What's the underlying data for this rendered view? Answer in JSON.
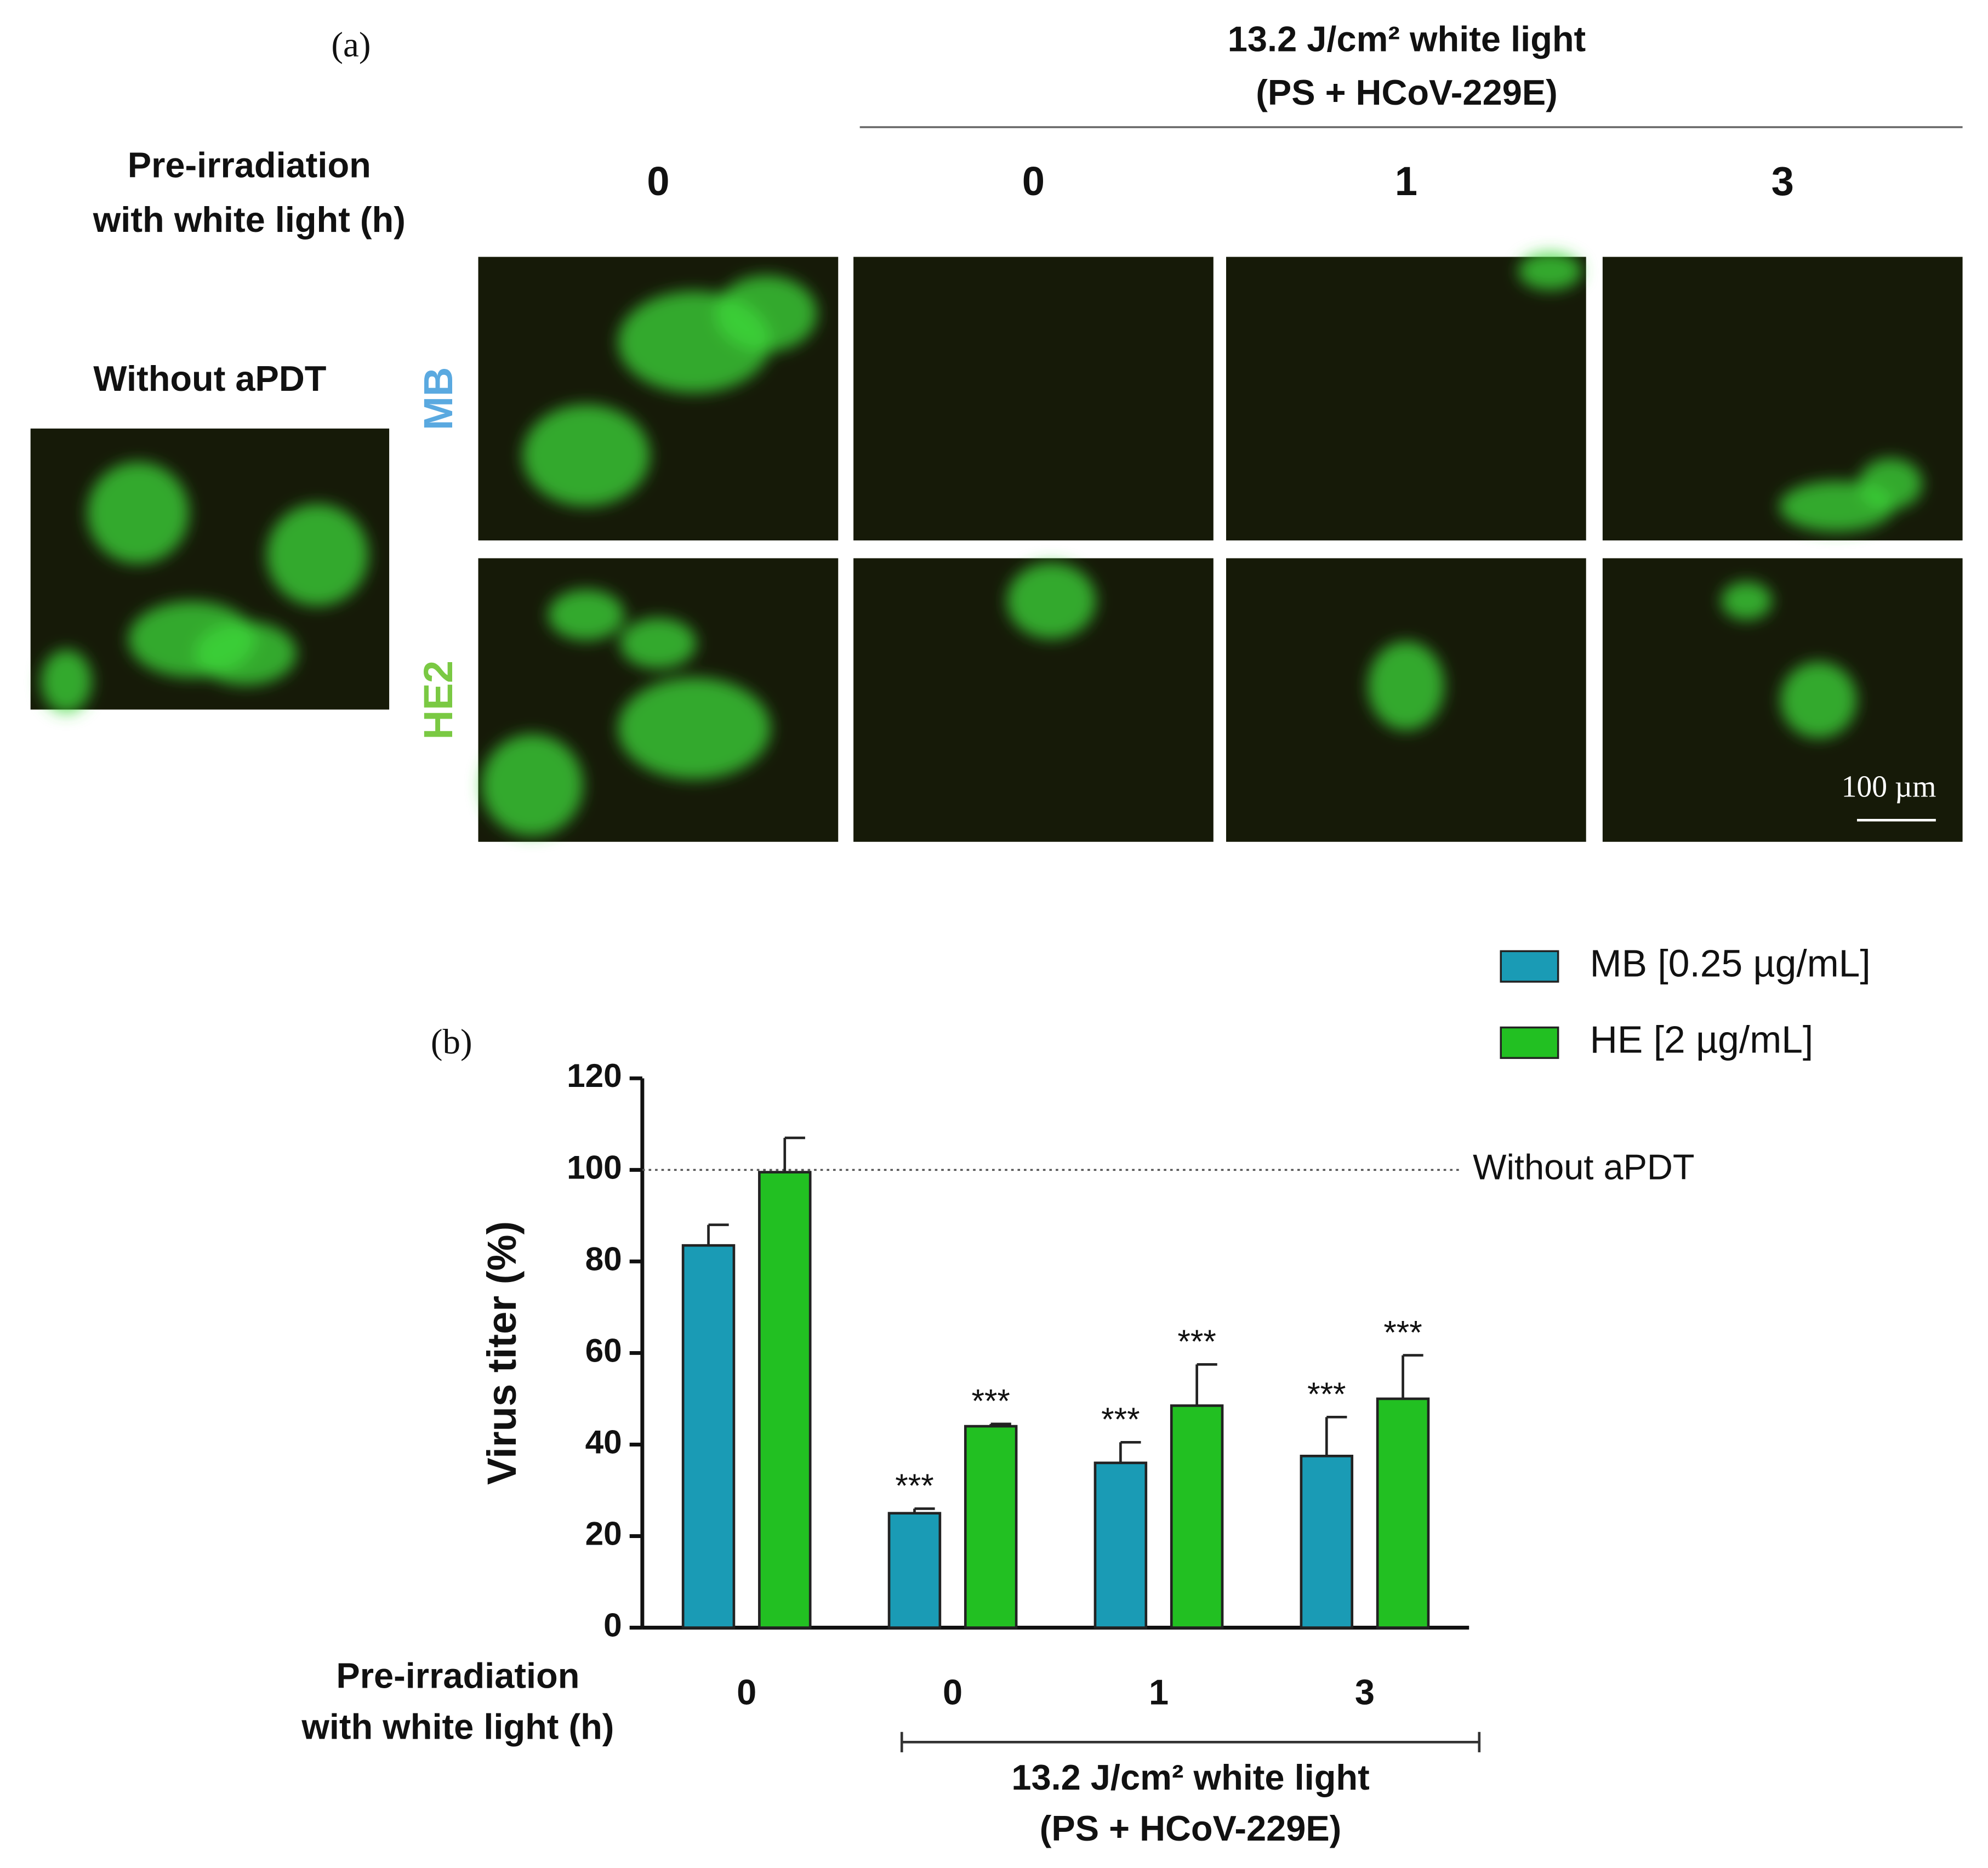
{
  "panel_a": {
    "label": "(a)",
    "header": [
      "13.2 J/cm² white light",
      "(PS + HCoV-229E)"
    ],
    "row_header": [
      "Pre-irradiation",
      "with white light (h)"
    ],
    "columns": [
      "0",
      "0",
      "1",
      "3"
    ],
    "rows": [
      {
        "label": "MB",
        "color": "#5aa9e0"
      },
      {
        "label": "HE2",
        "color": "#7ac943"
      }
    ],
    "control_label": "Without aPDT",
    "scale_bar": "100 µm"
  },
  "chart_data": {
    "type": "bar",
    "label": "(b)",
    "y_label": "Virus titer (%)",
    "x_label": [
      "Pre-irradiation",
      "with white light (h)"
    ],
    "categories": [
      "0",
      "0",
      "1",
      "3"
    ],
    "ylim": [
      0,
      120
    ],
    "yticks": [
      0,
      20,
      40,
      60,
      80,
      100,
      120
    ],
    "series": [
      {
        "name": "MB [0.25 µg/mL]",
        "color": "#1a9bb5",
        "values": [
          83.5,
          25,
          36,
          37.5
        ],
        "errors": [
          4.5,
          1,
          4.5,
          8.5
        ],
        "annotations": [
          null,
          "***",
          "***",
          "***"
        ]
      },
      {
        "name": "HE [2 µg/mL]",
        "color": "#22c022",
        "values": [
          99.5,
          44,
          48.5,
          50
        ],
        "errors": [
          7.5,
          0.5,
          9,
          9.5
        ],
        "annotations": [
          null,
          "***",
          "***",
          "***"
        ]
      }
    ],
    "reference_line": {
      "value": 100,
      "label": "Without aPDT"
    },
    "bracket": {
      "from": 1,
      "to": 3,
      "label": [
        "13.2 J/cm² white light",
        "(PS + HCoV-229E)"
      ]
    }
  }
}
